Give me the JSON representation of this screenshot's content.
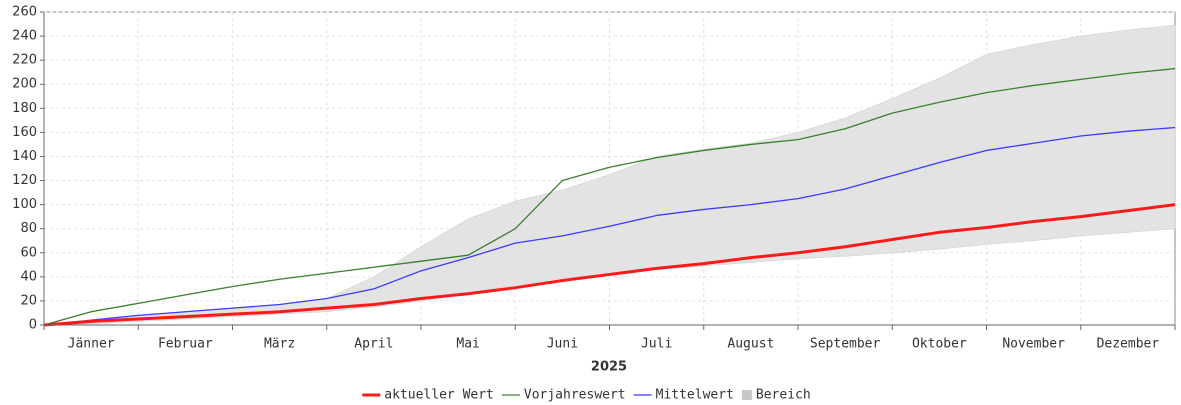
{
  "chart_data": {
    "type": "line",
    "x_label": "2025",
    "categories": [
      "Jänner",
      "Februar",
      "März",
      "April",
      "Mai",
      "Juni",
      "Juli",
      "August",
      "September",
      "Oktober",
      "November",
      "Dezember"
    ],
    "x": [
      0,
      0.5,
      1,
      1.5,
      2,
      2.5,
      3,
      3.5,
      4,
      4.5,
      5,
      5.5,
      6,
      6.5,
      7,
      7.5,
      8,
      8.5,
      9,
      9.5,
      10,
      10.5,
      11,
      11.5,
      12
    ],
    "xlim": [
      0,
      12
    ],
    "ylim": [
      0,
      260
    ],
    "yticks": [
      0,
      20,
      40,
      60,
      80,
      100,
      120,
      140,
      160,
      180,
      200,
      220,
      240,
      260
    ],
    "grid": true,
    "legend": "bottom",
    "band": {
      "name": "Bereich",
      "color": "#e3e3e3",
      "low": [
        0,
        1,
        3,
        5,
        7,
        9,
        11,
        15,
        20,
        27,
        33,
        39,
        42,
        46,
        49,
        52,
        55,
        57,
        60,
        63,
        67,
        70,
        74,
        77,
        80
      ],
      "high": [
        0,
        4,
        8,
        11,
        14,
        17,
        22,
        40,
        65,
        88,
        103,
        112,
        125,
        140,
        146,
        151,
        160,
        172,
        188,
        205,
        225,
        233,
        240,
        245,
        249
      ]
    },
    "series": [
      {
        "name": "aktueller Wert",
        "color": "#ff1a1a",
        "width": 3,
        "values": [
          0,
          3,
          5,
          7,
          9,
          11,
          14,
          17,
          22,
          26,
          31,
          37,
          42,
          47,
          51,
          56,
          60,
          65,
          71,
          77,
          81,
          86,
          90,
          95,
          100
        ]
      },
      {
        "name": "Vorjahreswert",
        "color": "#3a7f2e",
        "width": 1.3,
        "values": [
          0,
          11,
          18,
          25,
          32,
          38,
          43,
          48,
          53,
          58,
          80,
          120,
          131,
          139,
          145,
          150,
          154,
          163,
          176,
          185,
          193,
          199,
          204,
          209,
          213
        ]
      },
      {
        "name": "Mittelwert",
        "color": "#3b3bff",
        "width": 1.3,
        "values": [
          0,
          4,
          8,
          11,
          14,
          17,
          22,
          30,
          45,
          56,
          68,
          74,
          82,
          91,
          96,
          100,
          105,
          113,
          124,
          135,
          145,
          151,
          157,
          161,
          164
        ]
      }
    ]
  }
}
